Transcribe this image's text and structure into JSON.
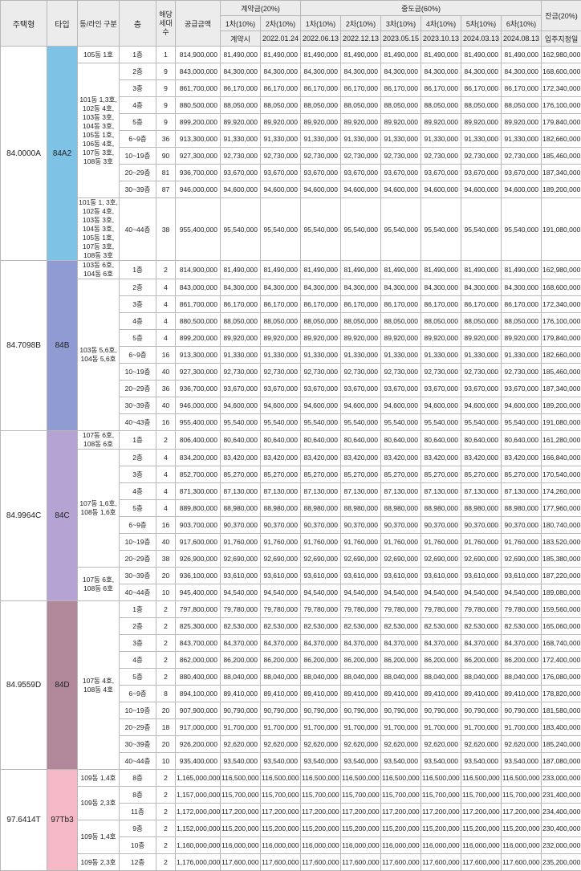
{
  "headers": {
    "house_type": "주택형",
    "type": "타입",
    "dong_line": "동/라인 구분",
    "floor": "층",
    "households": "해당 세대수",
    "supply_price": "공급금액",
    "contract_group": "계약금(20%)",
    "middle_group": "중도금(60%)",
    "balance": "잔금(20%)",
    "sub": [
      "1차(10%)",
      "2차(10%)",
      "1차(10%)",
      "2차(10%)",
      "3차(10%)",
      "4차(10%)",
      "5차(10%)",
      "6차(10%)"
    ],
    "dates": [
      "계약시",
      "2022.01.24",
      "2022.06.13",
      "2022.12.13",
      "2023.05.15",
      "2023.10.13",
      "2024.03.13",
      "2024.08.13",
      "입주지정일"
    ]
  },
  "colors": {
    "84A2": "#7ec3e6",
    "84B": "#8f9bd2",
    "84C": "#b4a3d3",
    "84D": "#b0889a",
    "97Tb3": "#f4b8c6"
  },
  "groups": [
    {
      "house": "84.0000A",
      "type": "84A2",
      "rows": [
        {
          "line": "105동 1호",
          "floor": "1층",
          "n": "1",
          "price": "814,900,000",
          "pays": [
            "81,490,000",
            "81,490,000",
            "81,490,000",
            "81,490,000",
            "81,490,000",
            "81,490,000",
            "81,490,000",
            "81,490,000"
          ],
          "balance": "162,980,000"
        },
        {
          "line": "101동 1,3호, 102동 4호, 103동 3호, 104동 3호, 105동 1호, 106동 4호, 107동 3호, 108동 3호",
          "floor": "2층",
          "n": "9",
          "price": "843,000,000",
          "pays": [
            "84,300,000",
            "84,300,000",
            "84,300,000",
            "84,300,000",
            "84,300,000",
            "84,300,000",
            "84,300,000",
            "84,300,000"
          ],
          "balance": "168,600,000"
        },
        {
          "floor": "3층",
          "n": "9",
          "price": "861,700,000",
          "pays": [
            "86,170,000",
            "86,170,000",
            "86,170,000",
            "86,170,000",
            "86,170,000",
            "86,170,000",
            "86,170,000",
            "86,170,000"
          ],
          "balance": "172,340,000"
        },
        {
          "floor": "4층",
          "n": "9",
          "price": "880,500,000",
          "pays": [
            "88,050,000",
            "88,050,000",
            "88,050,000",
            "88,050,000",
            "88,050,000",
            "88,050,000",
            "88,050,000",
            "88,050,000"
          ],
          "balance": "176,100,000"
        },
        {
          "floor": "5층",
          "n": "9",
          "price": "899,200,000",
          "pays": [
            "89,920,000",
            "89,920,000",
            "89,920,000",
            "89,920,000",
            "89,920,000",
            "89,920,000",
            "89,920,000",
            "89,920,000"
          ],
          "balance": "179,840,000"
        },
        {
          "floor": "6~9층",
          "n": "36",
          "price": "913,300,000",
          "pays": [
            "91,330,000",
            "91,330,000",
            "91,330,000",
            "91,330,000",
            "91,330,000",
            "91,330,000",
            "91,330,000",
            "91,330,000"
          ],
          "balance": "182,660,000"
        },
        {
          "floor": "10~19층",
          "n": "90",
          "price": "927,300,000",
          "pays": [
            "92,730,000",
            "92,730,000",
            "92,730,000",
            "92,730,000",
            "92,730,000",
            "92,730,000",
            "92,730,000",
            "92,730,000"
          ],
          "balance": "185,460,000"
        },
        {
          "floor": "20~29층",
          "n": "81",
          "price": "936,700,000",
          "pays": [
            "93,670,000",
            "93,670,000",
            "93,670,000",
            "93,670,000",
            "93,670,000",
            "93,670,000",
            "93,670,000",
            "93,670,000"
          ],
          "balance": "187,340,000"
        },
        {
          "floor": "30~39층",
          "n": "87",
          "price": "946,000,000",
          "pays": [
            "94,600,000",
            "94,600,000",
            "94,600,000",
            "94,600,000",
            "94,600,000",
            "94,600,000",
            "94,600,000",
            "94,600,000"
          ],
          "balance": "189,200,000"
        },
        {
          "line": "101동 1, 3호, 102동 4호, 103동 3호, 104동 3호, 105동 1호, 107동 3호, 108동 3호",
          "floor": "40~44층",
          "n": "38",
          "price": "955,400,000",
          "pays": [
            "95,540,000",
            "95,540,000",
            "95,540,000",
            "95,540,000",
            "95,540,000",
            "95,540,000",
            "95,540,000",
            "95,540,000"
          ],
          "balance": "191,080,000",
          "big": true
        }
      ]
    },
    {
      "house": "84.7098B",
      "type": "84B",
      "rows": [
        {
          "line": "103동 6호, 104동 6호",
          "floor": "1층",
          "n": "2",
          "price": "814,900,000",
          "pays": [
            "81,490,000",
            "81,490,000",
            "81,490,000",
            "81,490,000",
            "81,490,000",
            "81,490,000",
            "81,490,000",
            "81,490,000"
          ],
          "balance": "162,980,000"
        },
        {
          "line": "103동 5,6호, 104동 5,6호",
          "floor": "2층",
          "n": "4",
          "price": "843,000,000",
          "pays": [
            "84,300,000",
            "84,300,000",
            "84,300,000",
            "84,300,000",
            "84,300,000",
            "84,300,000",
            "84,300,000",
            "84,300,000"
          ],
          "balance": "168,600,000"
        },
        {
          "floor": "3층",
          "n": "4",
          "price": "861,700,000",
          "pays": [
            "86,170,000",
            "86,170,000",
            "86,170,000",
            "86,170,000",
            "86,170,000",
            "86,170,000",
            "86,170,000",
            "86,170,000"
          ],
          "balance": "172,340,000"
        },
        {
          "floor": "4층",
          "n": "4",
          "price": "880,500,000",
          "pays": [
            "88,050,000",
            "88,050,000",
            "88,050,000",
            "88,050,000",
            "88,050,000",
            "88,050,000",
            "88,050,000",
            "88,050,000"
          ],
          "balance": "176,100,000"
        },
        {
          "floor": "5층",
          "n": "4",
          "price": "899,200,000",
          "pays": [
            "89,920,000",
            "89,920,000",
            "89,920,000",
            "89,920,000",
            "89,920,000",
            "89,920,000",
            "89,920,000",
            "89,920,000"
          ],
          "balance": "179,840,000"
        },
        {
          "floor": "6~9층",
          "n": "16",
          "price": "913,300,000",
          "pays": [
            "91,330,000",
            "91,330,000",
            "91,330,000",
            "91,330,000",
            "91,330,000",
            "91,330,000",
            "91,330,000",
            "91,330,000"
          ],
          "balance": "182,660,000"
        },
        {
          "floor": "10~19층",
          "n": "40",
          "price": "927,300,000",
          "pays": [
            "92,730,000",
            "92,730,000",
            "92,730,000",
            "92,730,000",
            "92,730,000",
            "92,730,000",
            "92,730,000",
            "92,730,000"
          ],
          "balance": "185,460,000"
        },
        {
          "floor": "20~29층",
          "n": "36",
          "price": "936,700,000",
          "pays": [
            "93,670,000",
            "93,670,000",
            "93,670,000",
            "93,670,000",
            "93,670,000",
            "93,670,000",
            "93,670,000",
            "93,670,000"
          ],
          "balance": "187,340,000"
        },
        {
          "floor": "30~39층",
          "n": "40",
          "price": "946,000,000",
          "pays": [
            "94,600,000",
            "94,600,000",
            "94,600,000",
            "94,600,000",
            "94,600,000",
            "94,600,000",
            "94,600,000",
            "94,600,000"
          ],
          "balance": "189,200,000"
        },
        {
          "floor": "40~43층",
          "n": "16",
          "price": "955,400,000",
          "pays": [
            "95,540,000",
            "95,540,000",
            "95,540,000",
            "95,540,000",
            "95,540,000",
            "95,540,000",
            "95,540,000",
            "95,540,000"
          ],
          "balance": "191,080,000"
        }
      ]
    },
    {
      "house": "84.9964C",
      "type": "84C",
      "rows": [
        {
          "line": "107동 6호, 108동 6호",
          "floor": "1층",
          "n": "2",
          "price": "806,400,000",
          "pays": [
            "80,640,000",
            "80,640,000",
            "80,640,000",
            "80,640,000",
            "80,640,000",
            "80,640,000",
            "80,640,000",
            "80,640,000"
          ],
          "balance": "161,280,000"
        },
        {
          "line": "107동 1,6호, 108동 1,6호",
          "floor": "2층",
          "n": "4",
          "price": "834,200,000",
          "pays": [
            "83,420,000",
            "83,420,000",
            "83,420,000",
            "83,420,000",
            "83,420,000",
            "83,420,000",
            "83,420,000",
            "83,420,000"
          ],
          "balance": "166,840,000"
        },
        {
          "floor": "3층",
          "n": "4",
          "price": "852,700,000",
          "pays": [
            "85,270,000",
            "85,270,000",
            "85,270,000",
            "85,270,000",
            "85,270,000",
            "85,270,000",
            "85,270,000",
            "85,270,000"
          ],
          "balance": "170,540,000"
        },
        {
          "floor": "4층",
          "n": "4",
          "price": "871,300,000",
          "pays": [
            "87,130,000",
            "87,130,000",
            "87,130,000",
            "87,130,000",
            "87,130,000",
            "87,130,000",
            "87,130,000",
            "87,130,000"
          ],
          "balance": "174,260,000"
        },
        {
          "floor": "5층",
          "n": "4",
          "price": "889,800,000",
          "pays": [
            "88,980,000",
            "88,980,000",
            "88,980,000",
            "88,980,000",
            "88,980,000",
            "88,980,000",
            "88,980,000",
            "88,980,000"
          ],
          "balance": "177,960,000"
        },
        {
          "floor": "6~9층",
          "n": "16",
          "price": "903,700,000",
          "pays": [
            "90,370,000",
            "90,370,000",
            "90,370,000",
            "90,370,000",
            "90,370,000",
            "90,370,000",
            "90,370,000",
            "90,370,000"
          ],
          "balance": "180,740,000"
        },
        {
          "floor": "10~19층",
          "n": "40",
          "price": "917,600,000",
          "pays": [
            "91,760,000",
            "91,760,000",
            "91,760,000",
            "91,760,000",
            "91,760,000",
            "91,760,000",
            "91,760,000",
            "91,760,000"
          ],
          "balance": "183,520,000"
        },
        {
          "floor": "20~29층",
          "n": "38",
          "price": "926,900,000",
          "pays": [
            "92,690,000",
            "92,690,000",
            "92,690,000",
            "92,690,000",
            "92,690,000",
            "92,690,000",
            "92,690,000",
            "92,690,000"
          ],
          "balance": "185,380,000"
        },
        {
          "line": "107동 6호, 108동 6호",
          "floor": "30~39층",
          "n": "20",
          "price": "936,100,000",
          "pays": [
            "93,610,000",
            "93,610,000",
            "93,610,000",
            "93,610,000",
            "93,610,000",
            "93,610,000",
            "93,610,000",
            "93,610,000"
          ],
          "balance": "187,220,000"
        },
        {
          "floor": "40~44층",
          "n": "10",
          "price": "945,400,000",
          "pays": [
            "94,540,000",
            "94,540,000",
            "94,540,000",
            "94,540,000",
            "94,540,000",
            "94,540,000",
            "94,540,000",
            "94,540,000"
          ],
          "balance": "189,080,000"
        }
      ]
    },
    {
      "house": "84.9559D",
      "type": "84D",
      "rows": [
        {
          "line": "107동 4호, 108동 4호",
          "floor": "1층",
          "n": "2",
          "price": "797,800,000",
          "pays": [
            "79,780,000",
            "79,780,000",
            "79,780,000",
            "79,780,000",
            "79,780,000",
            "79,780,000",
            "79,780,000",
            "79,780,000"
          ],
          "balance": "159,560,000"
        },
        {
          "floor": "2층",
          "n": "2",
          "price": "825,300,000",
          "pays": [
            "82,530,000",
            "82,530,000",
            "82,530,000",
            "82,530,000",
            "82,530,000",
            "82,530,000",
            "82,530,000",
            "82,530,000"
          ],
          "balance": "165,060,000"
        },
        {
          "floor": "3층",
          "n": "2",
          "price": "843,700,000",
          "pays": [
            "84,370,000",
            "84,370,000",
            "84,370,000",
            "84,370,000",
            "84,370,000",
            "84,370,000",
            "84,370,000",
            "84,370,000"
          ],
          "balance": "168,740,000"
        },
        {
          "floor": "4층",
          "n": "2",
          "price": "862,000,000",
          "pays": [
            "86,200,000",
            "86,200,000",
            "86,200,000",
            "86,200,000",
            "86,200,000",
            "86,200,000",
            "86,200,000",
            "86,200,000"
          ],
          "balance": "172,400,000"
        },
        {
          "floor": "5층",
          "n": "2",
          "price": "880,400,000",
          "pays": [
            "88,040,000",
            "88,040,000",
            "88,040,000",
            "88,040,000",
            "88,040,000",
            "88,040,000",
            "88,040,000",
            "88,040,000"
          ],
          "balance": "176,080,000"
        },
        {
          "floor": "6~9층",
          "n": "8",
          "price": "894,100,000",
          "pays": [
            "89,410,000",
            "89,410,000",
            "89,410,000",
            "89,410,000",
            "89,410,000",
            "89,410,000",
            "89,410,000",
            "89,410,000"
          ],
          "balance": "178,820,000"
        },
        {
          "floor": "10~19층",
          "n": "20",
          "price": "907,900,000",
          "pays": [
            "90,790,000",
            "90,790,000",
            "90,790,000",
            "90,790,000",
            "90,790,000",
            "90,790,000",
            "90,790,000",
            "90,790,000"
          ],
          "balance": "181,580,000"
        },
        {
          "floor": "20~29층",
          "n": "18",
          "price": "917,000,000",
          "pays": [
            "91,700,000",
            "91,700,000",
            "91,700,000",
            "91,700,000",
            "91,700,000",
            "91,700,000",
            "91,700,000",
            "91,700,000"
          ],
          "balance": "183,400,000"
        },
        {
          "floor": "30~39층",
          "n": "20",
          "price": "926,200,000",
          "pays": [
            "92,620,000",
            "92,620,000",
            "92,620,000",
            "92,620,000",
            "92,620,000",
            "92,620,000",
            "92,620,000",
            "92,620,000"
          ],
          "balance": "185,240,000"
        },
        {
          "floor": "40~44층",
          "n": "10",
          "price": "935,400,000",
          "pays": [
            "93,540,000",
            "93,540,000",
            "93,540,000",
            "93,540,000",
            "93,540,000",
            "93,540,000",
            "93,540,000",
            "93,540,000"
          ],
          "balance": "187,080,000"
        }
      ]
    },
    {
      "house": "97.6414T",
      "type": "97Tb3",
      "rows": [
        {
          "line": "109동 1,4호",
          "floor": "8층",
          "n": "2",
          "price": "1,165,000,000",
          "pays": [
            "116,500,000",
            "116,500,000",
            "116,500,000",
            "116,500,000",
            "116,500,000",
            "116,500,000",
            "116,500,000",
            "116,500,000"
          ],
          "balance": "233,000,000"
        },
        {
          "line": "109동 2,3호",
          "floor": "8층",
          "n": "2",
          "price": "1,157,000,000",
          "pays": [
            "115,700,000",
            "115,700,000",
            "115,700,000",
            "115,700,000",
            "115,700,000",
            "115,700,000",
            "115,700,000",
            "115,700,000"
          ],
          "balance": "231,400,000"
        },
        {
          "floor": "11층",
          "n": "2",
          "price": "1,172,000,000",
          "pays": [
            "117,200,000",
            "117,200,000",
            "117,200,000",
            "117,200,000",
            "117,200,000",
            "117,200,000",
            "117,200,000",
            "117,200,000"
          ],
          "balance": "234,400,000"
        },
        {
          "line": "109동 1,4호",
          "floor": "9층",
          "n": "2",
          "price": "1,152,000,000",
          "pays": [
            "115,200,000",
            "115,200,000",
            "115,200,000",
            "115,200,000",
            "115,200,000",
            "115,200,000",
            "115,200,000",
            "115,200,000"
          ],
          "balance": "230,400,000"
        },
        {
          "floor": "10층",
          "n": "2",
          "price": "1,160,000,000",
          "pays": [
            "116,000,000",
            "116,000,000",
            "116,000,000",
            "116,000,000",
            "116,000,000",
            "116,000,000",
            "116,000,000",
            "116,000,000"
          ],
          "balance": "232,000,000"
        },
        {
          "line": "109동 2,3호",
          "floor": "12층",
          "n": "2",
          "price": "1,176,000,000",
          "pays": [
            "117,600,000",
            "117,600,000",
            "117,600,000",
            "117,600,000",
            "117,600,000",
            "117,600,000",
            "117,600,000",
            "117,600,000"
          ],
          "balance": "235,200,000"
        }
      ]
    }
  ]
}
